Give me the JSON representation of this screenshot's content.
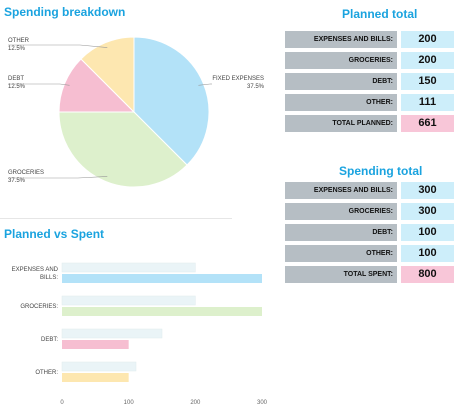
{
  "charts": {
    "pie_title": "Spending breakdown",
    "bar_title": "Planned vs Spent"
  },
  "planned": {
    "title": "Planned total",
    "rows": [
      {
        "label": "EXPENSES AND BILLS:",
        "value": "200"
      },
      {
        "label": "GROCERIES:",
        "value": "200"
      },
      {
        "label": "DEBT:",
        "value": "150"
      },
      {
        "label": "OTHER:",
        "value": "111"
      }
    ],
    "total": {
      "label": "TOTAL PLANNED:",
      "value": "661"
    }
  },
  "spending": {
    "title": "Spending total",
    "rows": [
      {
        "label": "EXPENSES AND BILLS:",
        "value": "300"
      },
      {
        "label": "GROCERIES:",
        "value": "300"
      },
      {
        "label": "DEBT:",
        "value": "100"
      },
      {
        "label": "OTHER:",
        "value": "100"
      }
    ],
    "total": {
      "label": "TOTAL SPENT:",
      "value": "800"
    }
  },
  "colors": {
    "title": "#1aa3df",
    "expenses": "#b3e2f8",
    "groceries": "#ddf0cc",
    "debt": "#f6bed1",
    "other": "#fde7b0",
    "planned_bar": "#eaf4f7",
    "label_bg": "#b6bec4",
    "value_bg": "#cdeefa",
    "total_bg": "#f8c6d8"
  },
  "chart_data": [
    {
      "type": "pie",
      "title": "Spending breakdown",
      "slices": [
        {
          "label": "FIXED EXPENSES",
          "value": 37.5,
          "pct_label": "37.5%",
          "color": "#b3e2f8"
        },
        {
          "label": "GROCERIES",
          "value": 37.5,
          "pct_label": "37.5%",
          "color": "#ddf0cc"
        },
        {
          "label": "DEBT",
          "value": 12.5,
          "pct_label": "12.5%",
          "color": "#f6bed1"
        },
        {
          "label": "OTHER",
          "value": 12.5,
          "pct_label": "12.5%",
          "color": "#fde7b0"
        }
      ]
    },
    {
      "type": "bar",
      "orientation": "horizontal",
      "title": "Planned vs Spent",
      "categories": [
        "EXPENSES AND BILLS:",
        "GROCERIES:",
        "DEBT:",
        "OTHER:"
      ],
      "series": [
        {
          "key": "planned",
          "values": [
            200,
            200,
            150,
            111
          ],
          "color": "#eaf4f7"
        },
        {
          "key": "spent",
          "values": [
            300,
            300,
            100,
            100
          ],
          "colors": [
            "#b3e2f8",
            "#ddf0cc",
            "#f6bed1",
            "#fde7b0"
          ]
        }
      ],
      "xlim": [
        0,
        300
      ],
      "xticks": [
        0,
        100,
        200,
        300
      ]
    }
  ]
}
